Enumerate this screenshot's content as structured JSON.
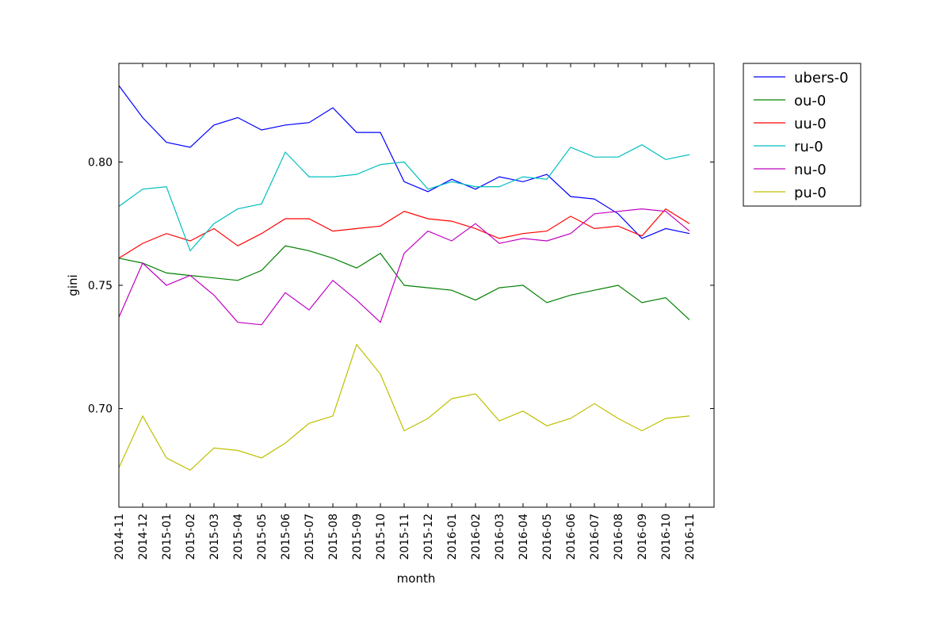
{
  "chart_data": {
    "type": "line",
    "xlabel": "month",
    "ylabel": "gini",
    "ylim": [
      0.66,
      0.84
    ],
    "yticks": [
      "0.70",
      "0.75",
      "0.80"
    ],
    "grid": false,
    "legend_position": "outside-top-right",
    "x": [
      "2014-11",
      "2014-12",
      "2015-01",
      "2015-02",
      "2015-03",
      "2015-04",
      "2015-05",
      "2015-06",
      "2015-07",
      "2015-08",
      "2015-09",
      "2015-10",
      "2015-11",
      "2015-12",
      "2016-01",
      "2016-02",
      "2016-03",
      "2016-04",
      "2016-05",
      "2016-06",
      "2016-07",
      "2016-08",
      "2016-09",
      "2016-10",
      "2016-11"
    ],
    "series": [
      {
        "name": "ubers-0",
        "color": "#0000ff",
        "values": [
          0.831,
          0.818,
          0.808,
          0.806,
          0.815,
          0.818,
          0.813,
          0.815,
          0.816,
          0.822,
          0.812,
          0.812,
          0.792,
          0.788,
          0.793,
          0.789,
          0.794,
          0.792,
          0.795,
          0.786,
          0.785,
          0.779,
          0.769,
          0.773,
          0.771
        ]
      },
      {
        "name": "ou-0",
        "color": "#008000",
        "values": [
          0.761,
          0.759,
          0.755,
          0.754,
          0.753,
          0.752,
          0.756,
          0.766,
          0.764,
          0.761,
          0.757,
          0.763,
          0.75,
          0.749,
          0.748,
          0.744,
          0.749,
          0.75,
          0.743,
          0.746,
          0.748,
          0.75,
          0.743,
          0.745,
          0.736
        ]
      },
      {
        "name": "uu-0",
        "color": "#ff0000",
        "values": [
          0.761,
          0.767,
          0.771,
          0.768,
          0.773,
          0.766,
          0.771,
          0.777,
          0.777,
          0.772,
          0.773,
          0.774,
          0.78,
          0.777,
          0.776,
          0.773,
          0.769,
          0.771,
          0.772,
          0.778,
          0.773,
          0.774,
          0.77,
          0.781,
          0.775
        ]
      },
      {
        "name": "ru-0",
        "color": "#00bfbf",
        "values": [
          0.782,
          0.789,
          0.79,
          0.764,
          0.775,
          0.781,
          0.783,
          0.804,
          0.794,
          0.794,
          0.795,
          0.799,
          0.8,
          0.789,
          0.792,
          0.79,
          0.79,
          0.794,
          0.793,
          0.806,
          0.802,
          0.802,
          0.807,
          0.801,
          0.803
        ]
      },
      {
        "name": "nu-0",
        "color": "#bf00bf",
        "values": [
          0.737,
          0.759,
          0.75,
          0.754,
          0.746,
          0.735,
          0.734,
          0.747,
          0.74,
          0.752,
          0.744,
          0.735,
          0.763,
          0.772,
          0.768,
          0.775,
          0.767,
          0.769,
          0.768,
          0.771,
          0.779,
          0.78,
          0.781,
          0.78,
          0.772
        ]
      },
      {
        "name": "pu-0",
        "color": "#bfbf00",
        "values": [
          0.676,
          0.697,
          0.68,
          0.675,
          0.684,
          0.683,
          0.68,
          0.686,
          0.694,
          0.697,
          0.726,
          0.714,
          0.691,
          0.696,
          0.704,
          0.706,
          0.695,
          0.699,
          0.693,
          0.696,
          0.702,
          0.696,
          0.691,
          0.696,
          0.697
        ]
      }
    ]
  }
}
